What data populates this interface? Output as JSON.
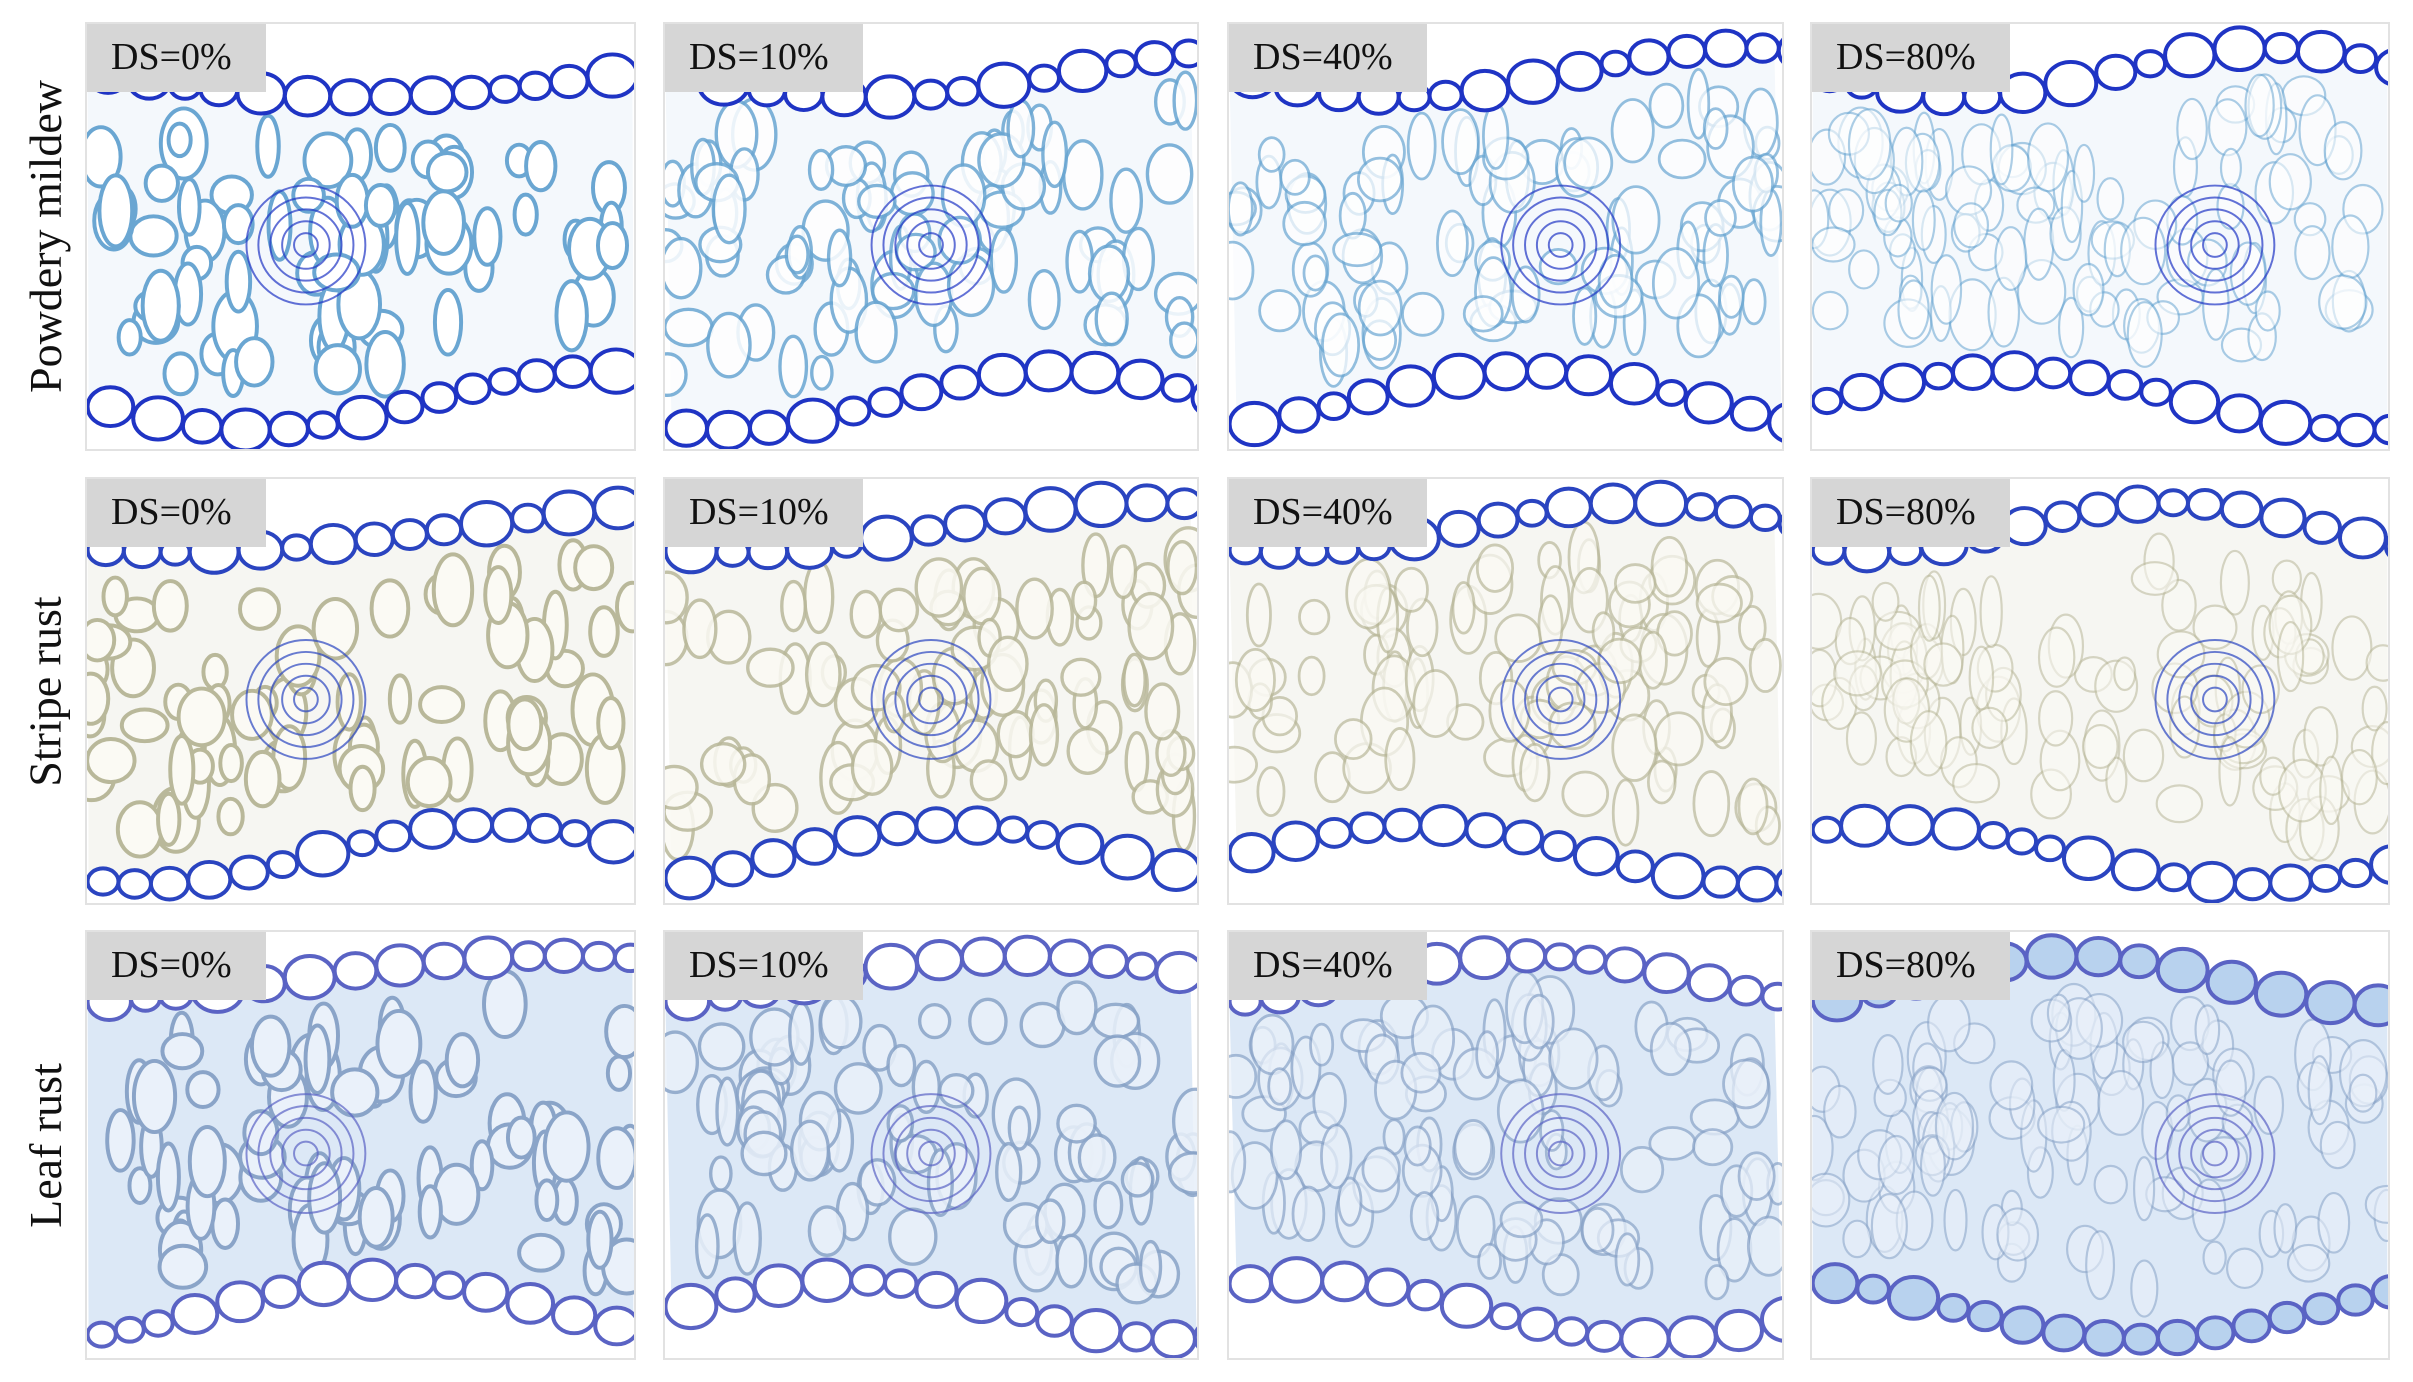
{
  "rows": [
    {
      "label": "Powdery mildew",
      "panels": [
        {
          "label": "DS=0%"
        },
        {
          "label": "DS=10%"
        },
        {
          "label": "DS=40%"
        },
        {
          "label": "DS=80%"
        }
      ]
    },
    {
      "label": "Stripe rust",
      "panels": [
        {
          "label": "DS=0%"
        },
        {
          "label": "DS=10%"
        },
        {
          "label": "DS=40%"
        },
        {
          "label": "DS=80%"
        }
      ]
    },
    {
      "label": "Leaf rust",
      "panels": [
        {
          "label": "DS=0%"
        },
        {
          "label": "DS=10%"
        },
        {
          "label": "DS=40%"
        },
        {
          "label": "DS=80%"
        }
      ]
    }
  ]
}
